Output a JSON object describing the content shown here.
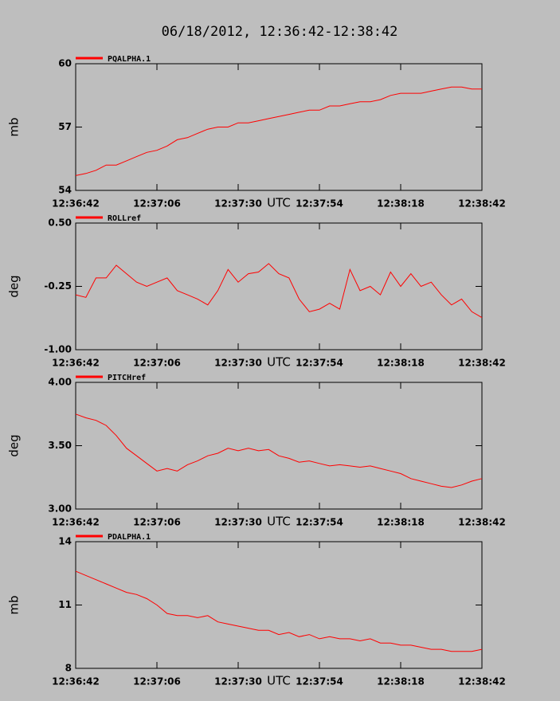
{
  "title": "06/18/2012, 12:36:42-12:38:42",
  "chart_data": [
    {
      "type": "line",
      "xlabel": "UTC",
      "ylabel": "mb",
      "x": [
        "12:36:42",
        "12:36:45",
        "12:36:48",
        "12:36:51",
        "12:36:54",
        "12:36:57",
        "12:37:00",
        "12:37:03",
        "12:37:06",
        "12:37:09",
        "12:37:12",
        "12:37:15",
        "12:37:18",
        "12:37:21",
        "12:37:24",
        "12:37:27",
        "12:37:30",
        "12:37:33",
        "12:37:36",
        "12:37:39",
        "12:37:42",
        "12:37:45",
        "12:37:48",
        "12:37:51",
        "12:37:54",
        "12:37:57",
        "12:38:00",
        "12:38:03",
        "12:38:06",
        "12:38:09",
        "12:38:12",
        "12:38:15",
        "12:38:18",
        "12:38:21",
        "12:38:24",
        "12:38:27",
        "12:38:30",
        "12:38:33",
        "12:38:36",
        "12:38:39",
        "12:38:42"
      ],
      "xlim": [
        "12:36:42",
        "12:38:42"
      ],
      "xticks": [
        "12:36:42",
        "12:37:06",
        "12:37:30",
        "12:37:54",
        "12:38:18",
        "12:38:42"
      ],
      "ylim": [
        54,
        60
      ],
      "yticks": [
        54,
        57,
        60
      ],
      "series": [
        {
          "name": "PQALPHA.1",
          "color": "#ff0000",
          "values": [
            54.7,
            54.8,
            54.95,
            55.2,
            55.2,
            55.4,
            55.6,
            55.8,
            55.9,
            56.1,
            56.4,
            56.5,
            56.7,
            56.9,
            57.0,
            57.0,
            57.2,
            57.2,
            57.3,
            57.4,
            57.5,
            57.6,
            57.7,
            57.8,
            57.8,
            58.0,
            58.0,
            58.1,
            58.2,
            58.2,
            58.3,
            58.5,
            58.6,
            58.6,
            58.6,
            58.7,
            58.8,
            58.9,
            58.9,
            58.8,
            58.8
          ]
        }
      ]
    },
    {
      "type": "line",
      "xlabel": "UTC",
      "ylabel": "deg",
      "x": [
        "12:36:42",
        "12:36:45",
        "12:36:48",
        "12:36:51",
        "12:36:54",
        "12:36:57",
        "12:37:00",
        "12:37:03",
        "12:37:06",
        "12:37:09",
        "12:37:12",
        "12:37:15",
        "12:37:18",
        "12:37:21",
        "12:37:24",
        "12:37:27",
        "12:37:30",
        "12:37:33",
        "12:37:36",
        "12:37:39",
        "12:37:42",
        "12:37:45",
        "12:37:48",
        "12:37:51",
        "12:37:54",
        "12:37:57",
        "12:38:00",
        "12:38:03",
        "12:38:06",
        "12:38:09",
        "12:38:12",
        "12:38:15",
        "12:38:18",
        "12:38:21",
        "12:38:24",
        "12:38:27",
        "12:38:30",
        "12:38:33",
        "12:38:36",
        "12:38:39",
        "12:38:42"
      ],
      "xlim": [
        "12:36:42",
        "12:38:42"
      ],
      "xticks": [
        "12:36:42",
        "12:37:06",
        "12:37:30",
        "12:37:54",
        "12:38:18",
        "12:38:42"
      ],
      "ylim": [
        -1,
        0.5
      ],
      "yticks": [
        {
          "value": -1,
          "label": "-1.00"
        },
        {
          "value": -0.25,
          "label": "-0.25"
        },
        {
          "value": 0.5,
          "label": "0.50"
        }
      ],
      "series": [
        {
          "name": "ROLLref",
          "color": "#ff0000",
          "values": [
            -0.35,
            -0.38,
            -0.15,
            -0.15,
            0.0,
            -0.1,
            -0.2,
            -0.25,
            -0.2,
            -0.15,
            -0.3,
            -0.35,
            -0.4,
            -0.47,
            -0.3,
            -0.05,
            -0.2,
            -0.1,
            -0.08,
            0.02,
            -0.1,
            -0.15,
            -0.4,
            -0.55,
            -0.52,
            -0.45,
            -0.52,
            -0.05,
            -0.3,
            -0.25,
            -0.35,
            -0.08,
            -0.25,
            -0.1,
            -0.25,
            -0.2,
            -0.35,
            -0.47,
            -0.4,
            -0.55,
            -0.62
          ]
        }
      ]
    },
    {
      "type": "line",
      "xlabel": "UTC",
      "ylabel": "deg",
      "x": [
        "12:36:42",
        "12:36:45",
        "12:36:48",
        "12:36:51",
        "12:36:54",
        "12:36:57",
        "12:37:00",
        "12:37:03",
        "12:37:06",
        "12:37:09",
        "12:37:12",
        "12:37:15",
        "12:37:18",
        "12:37:21",
        "12:37:24",
        "12:37:27",
        "12:37:30",
        "12:37:33",
        "12:37:36",
        "12:37:39",
        "12:37:42",
        "12:37:45",
        "12:37:48",
        "12:37:51",
        "12:37:54",
        "12:37:57",
        "12:38:00",
        "12:38:03",
        "12:38:06",
        "12:38:09",
        "12:38:12",
        "12:38:15",
        "12:38:18",
        "12:38:21",
        "12:38:24",
        "12:38:27",
        "12:38:30",
        "12:38:33",
        "12:38:36",
        "12:38:39",
        "12:38:42"
      ],
      "xlim": [
        "12:36:42",
        "12:38:42"
      ],
      "xticks": [
        "12:36:42",
        "12:37:06",
        "12:37:30",
        "12:37:54",
        "12:38:18",
        "12:38:42"
      ],
      "ylim": [
        3,
        4
      ],
      "yticks": [
        {
          "value": 3,
          "label": "3.00"
        },
        {
          "value": 3.5,
          "label": "3.50"
        },
        {
          "value": 4,
          "label": "4.00"
        }
      ],
      "series": [
        {
          "name": "PITCHref",
          "color": "#ff0000",
          "values": [
            3.75,
            3.72,
            3.7,
            3.66,
            3.58,
            3.48,
            3.42,
            3.36,
            3.3,
            3.32,
            3.3,
            3.35,
            3.38,
            3.42,
            3.44,
            3.48,
            3.46,
            3.48,
            3.46,
            3.47,
            3.42,
            3.4,
            3.37,
            3.38,
            3.36,
            3.34,
            3.35,
            3.34,
            3.33,
            3.34,
            3.32,
            3.3,
            3.28,
            3.24,
            3.22,
            3.2,
            3.18,
            3.17,
            3.19,
            3.22,
            3.24
          ]
        }
      ]
    },
    {
      "type": "line",
      "xlabel": "UTC",
      "ylabel": "mb",
      "x": [
        "12:36:42",
        "12:36:45",
        "12:36:48",
        "12:36:51",
        "12:36:54",
        "12:36:57",
        "12:37:00",
        "12:37:03",
        "12:37:06",
        "12:37:09",
        "12:37:12",
        "12:37:15",
        "12:37:18",
        "12:37:21",
        "12:37:24",
        "12:37:27",
        "12:37:30",
        "12:37:33",
        "12:37:36",
        "12:37:39",
        "12:37:42",
        "12:37:45",
        "12:37:48",
        "12:37:51",
        "12:37:54",
        "12:37:57",
        "12:38:00",
        "12:38:03",
        "12:38:06",
        "12:38:09",
        "12:38:12",
        "12:38:15",
        "12:38:18",
        "12:38:21",
        "12:38:24",
        "12:38:27",
        "12:38:30",
        "12:38:33",
        "12:38:36",
        "12:38:39",
        "12:38:42"
      ],
      "xlim": [
        "12:36:42",
        "12:38:42"
      ],
      "xticks": [
        "12:36:42",
        "12:37:06",
        "12:37:30",
        "12:37:54",
        "12:38:18",
        "12:38:42"
      ],
      "ylim": [
        8,
        14
      ],
      "yticks": [
        8,
        11,
        14
      ],
      "series": [
        {
          "name": "PDALPHA.1",
          "color": "#ff0000",
          "values": [
            12.6,
            12.4,
            12.2,
            12.0,
            11.8,
            11.6,
            11.5,
            11.3,
            11.0,
            10.6,
            10.5,
            10.5,
            10.4,
            10.5,
            10.2,
            10.1,
            10.0,
            9.9,
            9.8,
            9.8,
            9.6,
            9.7,
            9.5,
            9.6,
            9.4,
            9.5,
            9.4,
            9.4,
            9.3,
            9.4,
            9.2,
            9.2,
            9.1,
            9.1,
            9.0,
            8.9,
            8.9,
            8.8,
            8.8,
            8.8,
            8.9
          ]
        }
      ]
    }
  ]
}
